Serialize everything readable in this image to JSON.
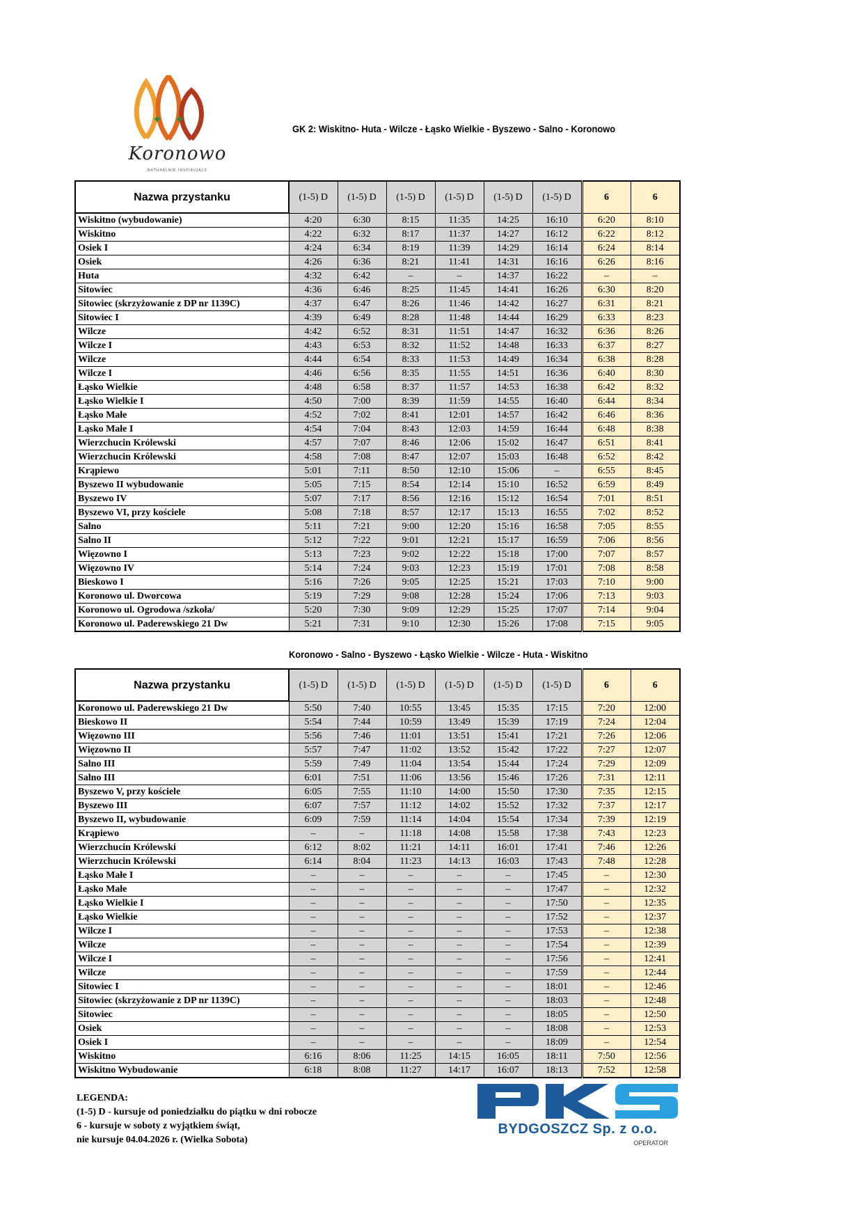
{
  "logo": {
    "text": "Koronowo",
    "tagline": "NATURALNIE INSPIRUJĄCE",
    "colors": [
      "#f0a030",
      "#e06a20",
      "#b03a20",
      "#2e8b3e"
    ]
  },
  "operator": {
    "name": "PKS",
    "subtitle": "BYDGOSZCZ Sp. z o.o.",
    "role": "OPERATOR",
    "color": "#1d5a9c",
    "accent": "#2aa0dc"
  },
  "header": {
    "stop_col": "Nazwa przystanku",
    "cols": [
      "(1-5) D",
      "(1-5) D",
      "(1-5) D",
      "(1-5) D",
      "(1-5) D",
      "(1-5) D",
      "6",
      "6"
    ]
  },
  "colors": {
    "weekday_bg": "#d4d4d4",
    "saturday_bg": "#fdf0c8"
  },
  "table1": {
    "title": "GK 2: Wiskitno- Huta - Wilcze - Łąsko Wielkie - Byszewo - Salno - Koronowo",
    "rows": [
      {
        "stop": "Wiskitno (wybudowanie)",
        "t": [
          "4:20",
          "6:30",
          "8:15",
          "11:35",
          "14:25",
          "16:10",
          "6:20",
          "8:10"
        ]
      },
      {
        "stop": "Wiskitno",
        "t": [
          "4:22",
          "6:32",
          "8:17",
          "11:37",
          "14:27",
          "16:12",
          "6:22",
          "8:12"
        ]
      },
      {
        "stop": "Osiek I",
        "t": [
          "4:24",
          "6:34",
          "8:19",
          "11:39",
          "14:29",
          "16:14",
          "6:24",
          "8:14"
        ]
      },
      {
        "stop": "Osiek",
        "t": [
          "4:26",
          "6:36",
          "8:21",
          "11:41",
          "14:31",
          "16:16",
          "6:26",
          "8:16"
        ]
      },
      {
        "stop": "Huta",
        "t": [
          "4:32",
          "6:42",
          "–",
          "–",
          "14:37",
          "16:22",
          "–",
          "–"
        ]
      },
      {
        "stop": "Sitowiec",
        "t": [
          "4:36",
          "6:46",
          "8:25",
          "11:45",
          "14:41",
          "16:26",
          "6:30",
          "8:20"
        ]
      },
      {
        "stop": "Sitowiec (skrzyżowanie z DP nr 1139C)",
        "t": [
          "4:37",
          "6:47",
          "8:26",
          "11:46",
          "14:42",
          "16:27",
          "6:31",
          "8:21"
        ]
      },
      {
        "stop": "Sitowiec I",
        "t": [
          "4:39",
          "6:49",
          "8:28",
          "11:48",
          "14:44",
          "16:29",
          "6:33",
          "8:23"
        ]
      },
      {
        "stop": "Wilcze",
        "t": [
          "4:42",
          "6:52",
          "8:31",
          "11:51",
          "14:47",
          "16:32",
          "6:36",
          "8:26"
        ]
      },
      {
        "stop": "Wilcze I",
        "t": [
          "4:43",
          "6:53",
          "8:32",
          "11:52",
          "14:48",
          "16:33",
          "6:37",
          "8:27"
        ]
      },
      {
        "stop": "Wilcze",
        "t": [
          "4:44",
          "6:54",
          "8:33",
          "11:53",
          "14:49",
          "16:34",
          "6:38",
          "8:28"
        ]
      },
      {
        "stop": "Wilcze I",
        "t": [
          "4:46",
          "6:56",
          "8:35",
          "11:55",
          "14:51",
          "16:36",
          "6:40",
          "8:30"
        ]
      },
      {
        "stop": "Łąsko Wielkie",
        "t": [
          "4:48",
          "6:58",
          "8:37",
          "11:57",
          "14:53",
          "16:38",
          "6:42",
          "8:32"
        ]
      },
      {
        "stop": "Łąsko Wielkie I",
        "t": [
          "4:50",
          "7:00",
          "8:39",
          "11:59",
          "14:55",
          "16:40",
          "6:44",
          "8:34"
        ]
      },
      {
        "stop": "Łąsko Małe",
        "t": [
          "4:52",
          "7:02",
          "8:41",
          "12:01",
          "14:57",
          "16:42",
          "6:46",
          "8:36"
        ]
      },
      {
        "stop": "Łąsko Małe I",
        "t": [
          "4:54",
          "7:04",
          "8:43",
          "12:03",
          "14:59",
          "16:44",
          "6:48",
          "8:38"
        ]
      },
      {
        "stop": "Wierzchucin Królewski",
        "t": [
          "4:57",
          "7:07",
          "8:46",
          "12:06",
          "15:02",
          "16:47",
          "6:51",
          "8:41"
        ]
      },
      {
        "stop": "Wierzchucin Królewski",
        "t": [
          "4:58",
          "7:08",
          "8:47",
          "12:07",
          "15:03",
          "16:48",
          "6:52",
          "8:42"
        ]
      },
      {
        "stop": "Krąpiewo",
        "t": [
          "5:01",
          "7:11",
          "8:50",
          "12:10",
          "15:06",
          "–",
          "6:55",
          "8:45"
        ]
      },
      {
        "stop": "Byszewo II wybudowanie",
        "t": [
          "5:05",
          "7:15",
          "8:54",
          "12:14",
          "15:10",
          "16:52",
          "6:59",
          "8:49"
        ]
      },
      {
        "stop": "Byszewo IV",
        "t": [
          "5:07",
          "7:17",
          "8:56",
          "12:16",
          "15:12",
          "16:54",
          "7:01",
          "8:51"
        ]
      },
      {
        "stop": "Byszewo VI, przy kościele",
        "t": [
          "5:08",
          "7:18",
          "8:57",
          "12:17",
          "15:13",
          "16:55",
          "7:02",
          "8:52"
        ]
      },
      {
        "stop": "Salno",
        "t": [
          "5:11",
          "7:21",
          "9:00",
          "12:20",
          "15:16",
          "16:58",
          "7:05",
          "8:55"
        ]
      },
      {
        "stop": "Salno II",
        "t": [
          "5:12",
          "7:22",
          "9:01",
          "12:21",
          "15:17",
          "16:59",
          "7:06",
          "8:56"
        ]
      },
      {
        "stop": "Więzowno I",
        "t": [
          "5:13",
          "7:23",
          "9:02",
          "12:22",
          "15:18",
          "17:00",
          "7:07",
          "8:57"
        ]
      },
      {
        "stop": "Więzowno IV",
        "t": [
          "5:14",
          "7:24",
          "9:03",
          "12:23",
          "15:19",
          "17:01",
          "7:08",
          "8:58"
        ]
      },
      {
        "stop": "Bieskowo I",
        "t": [
          "5:16",
          "7:26",
          "9:05",
          "12:25",
          "15:21",
          "17:03",
          "7:10",
          "9:00"
        ]
      },
      {
        "stop": "Koronowo ul. Dworcowa",
        "t": [
          "5:19",
          "7:29",
          "9:08",
          "12:28",
          "15:24",
          "17:06",
          "7:13",
          "9:03"
        ]
      },
      {
        "stop": "Koronowo ul. Ogrodowa /szkoła/",
        "t": [
          "5:20",
          "7:30",
          "9:09",
          "12:29",
          "15:25",
          "17:07",
          "7:14",
          "9:04"
        ]
      },
      {
        "stop": "Koronowo ul. Paderewskiego 21 Dw",
        "t": [
          "5:21",
          "7:31",
          "9:10",
          "12:30",
          "15:26",
          "17:08",
          "7:15",
          "9:05"
        ]
      }
    ]
  },
  "table2": {
    "title": "Koronowo - Salno - Byszewo - Łąsko Wielkie - Wilcze - Huta - Wiskitno",
    "rows": [
      {
        "stop": "Koronowo ul. Paderewskiego 21 Dw",
        "t": [
          "5:50",
          "7:40",
          "10:55",
          "13:45",
          "15:35",
          "17:15",
          "7:20",
          "12:00"
        ]
      },
      {
        "stop": "Bieskowo II",
        "t": [
          "5:54",
          "7:44",
          "10:59",
          "13:49",
          "15:39",
          "17:19",
          "7:24",
          "12:04"
        ]
      },
      {
        "stop": "Więzowno III",
        "t": [
          "5:56",
          "7:46",
          "11:01",
          "13:51",
          "15:41",
          "17:21",
          "7:26",
          "12:06"
        ]
      },
      {
        "stop": "Więzowno II",
        "t": [
          "5:57",
          "7:47",
          "11:02",
          "13:52",
          "15:42",
          "17:22",
          "7:27",
          "12:07"
        ]
      },
      {
        "stop": "Salno III",
        "t": [
          "5:59",
          "7:49",
          "11:04",
          "13:54",
          "15:44",
          "17:24",
          "7:29",
          "12:09"
        ]
      },
      {
        "stop": "Salno III",
        "t": [
          "6:01",
          "7:51",
          "11:06",
          "13:56",
          "15:46",
          "17:26",
          "7:31",
          "12:11"
        ]
      },
      {
        "stop": "Byszewo V, przy kościele",
        "t": [
          "6:05",
          "7:55",
          "11:10",
          "14:00",
          "15:50",
          "17:30",
          "7:35",
          "12:15"
        ]
      },
      {
        "stop": "Byszewo III",
        "t": [
          "6:07",
          "7:57",
          "11:12",
          "14:02",
          "15:52",
          "17:32",
          "7:37",
          "12:17"
        ]
      },
      {
        "stop": "Byszewo II, wybudowanie",
        "t": [
          "6:09",
          "7:59",
          "11:14",
          "14:04",
          "15:54",
          "17:34",
          "7:39",
          "12:19"
        ]
      },
      {
        "stop": "Krąpiewo",
        "t": [
          "–",
          "–",
          "11:18",
          "14:08",
          "15:58",
          "17:38",
          "7:43",
          "12:23"
        ]
      },
      {
        "stop": "Wierzchucin Królewski",
        "t": [
          "6:12",
          "8:02",
          "11:21",
          "14:11",
          "16:01",
          "17:41",
          "7:46",
          "12:26"
        ]
      },
      {
        "stop": "Wierzchucin Królewski",
        "t": [
          "6:14",
          "8:04",
          "11:23",
          "14:13",
          "16:03",
          "17:43",
          "7:48",
          "12:28"
        ]
      },
      {
        "stop": "Łąsko Małe I",
        "t": [
          "–",
          "–",
          "–",
          "–",
          "–",
          "17:45",
          "–",
          "12:30"
        ]
      },
      {
        "stop": "Łąsko Małe",
        "t": [
          "–",
          "–",
          "–",
          "–",
          "–",
          "17:47",
          "–",
          "12:32"
        ]
      },
      {
        "stop": "Łąsko Wielkie I",
        "t": [
          "–",
          "–",
          "–",
          "–",
          "–",
          "17:50",
          "–",
          "12:35"
        ]
      },
      {
        "stop": "Łąsko Wielkie",
        "t": [
          "–",
          "–",
          "–",
          "–",
          "–",
          "17:52",
          "–",
          "12:37"
        ]
      },
      {
        "stop": "Wilcze I",
        "t": [
          "–",
          "–",
          "–",
          "–",
          "–",
          "17:53",
          "–",
          "12:38"
        ]
      },
      {
        "stop": "Wilcze",
        "t": [
          "–",
          "–",
          "–",
          "–",
          "–",
          "17:54",
          "–",
          "12:39"
        ]
      },
      {
        "stop": "Wilcze I",
        "t": [
          "–",
          "–",
          "–",
          "–",
          "–",
          "17:56",
          "–",
          "12:41"
        ]
      },
      {
        "stop": "Wilcze",
        "t": [
          "–",
          "–",
          "–",
          "–",
          "–",
          "17:59",
          "–",
          "12:44"
        ]
      },
      {
        "stop": "Sitowiec I",
        "t": [
          "–",
          "–",
          "–",
          "–",
          "–",
          "18:01",
          "–",
          "12:46"
        ]
      },
      {
        "stop": "Sitowiec (skrzyżowanie z DP nr 1139C)",
        "t": [
          "–",
          "–",
          "–",
          "–",
          "–",
          "18:03",
          "–",
          "12:48"
        ]
      },
      {
        "stop": "Sitowiec",
        "t": [
          "–",
          "–",
          "–",
          "–",
          "–",
          "18:05",
          "–",
          "12:50"
        ]
      },
      {
        "stop": "Osiek",
        "t": [
          "–",
          "–",
          "–",
          "–",
          "–",
          "18:08",
          "–",
          "12:53"
        ]
      },
      {
        "stop": "Osiek I",
        "t": [
          "–",
          "–",
          "–",
          "–",
          "–",
          "18:09",
          "–",
          "12:54"
        ]
      },
      {
        "stop": "Wiskitno",
        "t": [
          "6:16",
          "8:06",
          "11:25",
          "14:15",
          "16:05",
          "18:11",
          "7:50",
          "12:56"
        ]
      },
      {
        "stop": "Wiskitno Wybudowanie",
        "t": [
          "6:18",
          "8:08",
          "11:27",
          "14:17",
          "16:07",
          "18:13",
          "7:52",
          "12:58"
        ]
      }
    ]
  },
  "legend": {
    "title": "LEGENDA:",
    "lines": [
      "(1-5) D - kursuje od poniedziałku do piątku w dni robocze",
      "6 - kursuje w soboty z wyjątkiem świąt,",
      "nie kursuje 04.04.2026 r. (Wielka Sobota)"
    ]
  }
}
